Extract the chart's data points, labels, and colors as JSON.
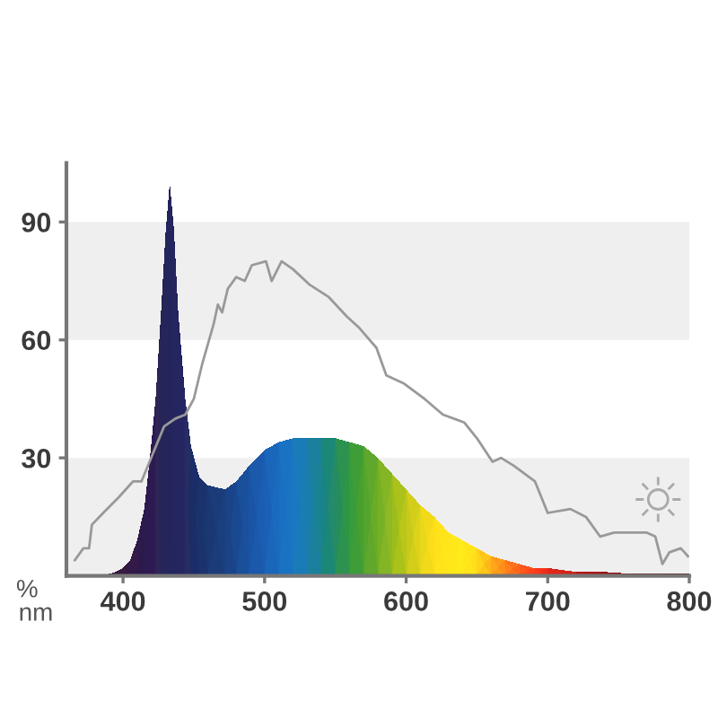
{
  "chart_data": {
    "type": "area",
    "xlabel": "nm",
    "ylabel": "%",
    "series": [
      {
        "x": [
          385,
          390,
          395,
          400,
          405,
          410,
          415,
          419,
          423,
          427,
          430,
          433,
          436,
          439,
          444,
          448,
          454,
          460,
          472,
          480,
          489,
          500,
          510,
          520,
          530,
          540,
          550,
          560,
          570,
          580,
          590,
          600,
          610,
          620,
          630,
          640,
          650,
          660,
          670,
          680,
          690,
          700,
          720,
          740,
          760,
          780,
          800
        ],
        "values": [
          0,
          0.5,
          1,
          2,
          4,
          9,
          17,
          30,
          45,
          68,
          87,
          100,
          88,
          67,
          45,
          33,
          25,
          23,
          22,
          24,
          28,
          32,
          34,
          35,
          35,
          35,
          35,
          34,
          33,
          30,
          26,
          22,
          18,
          15,
          11,
          9,
          7,
          5,
          4,
          3,
          2,
          2,
          1,
          1,
          0.5,
          0.5,
          0.5
        ],
        "colors": [
          "#4a1048",
          "#45104a",
          "#42104c",
          "#3e0e4e",
          "#3a1052",
          "#361256",
          "#32145a",
          "#2e165e",
          "#2b1862",
          "#281a66",
          "#261c68",
          "#241e6a",
          "#22206c",
          "#1f246e",
          "#1a2a70",
          "#163072",
          "#103876",
          "#0c407c",
          "#0a4c88",
          "#0a5694",
          "#0a60a0",
          "#0a6cac",
          "#0a78b4",
          "#0a80b4",
          "#0a86a8",
          "#0a8a90",
          "#1a9070",
          "#389a48",
          "#5aa030",
          "#7aa822",
          "#98b018",
          "#b4b810",
          "#c8c008",
          "#d8c604",
          "#e6ca00",
          "#f0cc00",
          "#f5c400",
          "#f2a808",
          "#ee8c10",
          "#e66c14",
          "#dc4a14",
          "#cc2a14",
          "#b41414",
          "#9a0e10",
          "#84090c",
          "#70060a",
          "#600408"
        ]
      },
      {
        "type": "line",
        "x": [
          366,
          372,
          376,
          378,
          386,
          397,
          407,
          413,
          421,
          429,
          437,
          444,
          450,
          456,
          464,
          467,
          470,
          474,
          480,
          486,
          491,
          501,
          505,
          512,
          520,
          532,
          545,
          558,
          567,
          579,
          586,
          598,
          613,
          626,
          641,
          650,
          661,
          667,
          676,
          691,
          700,
          716,
          727,
          737,
          747,
          757,
          770,
          776,
          781,
          786,
          794,
          799
        ],
        "values": [
          4,
          7,
          7,
          13,
          16,
          20,
          24,
          24,
          31,
          38,
          40,
          41,
          45,
          54,
          64,
          69,
          67,
          73,
          76,
          75,
          79,
          80,
          75,
          80,
          78,
          74,
          71,
          66,
          63,
          58,
          51,
          49,
          45,
          41,
          39,
          35,
          29,
          30,
          28,
          24,
          16,
          17,
          15,
          10,
          11,
          11,
          11,
          10,
          3,
          6,
          7,
          5
        ],
        "color": "#999999"
      }
    ],
    "xlim": [
      360,
      800
    ],
    "ylim": [
      0,
      105
    ],
    "xticks": [
      400,
      500,
      600,
      700,
      800
    ],
    "yticks": [
      30,
      60,
      90
    ],
    "bands": [
      {
        "axis": "y",
        "from": 0,
        "to": 30,
        "color": "#efefef"
      },
      {
        "axis": "y",
        "from": 60,
        "to": 90,
        "color": "#efefef"
      }
    ]
  }
}
